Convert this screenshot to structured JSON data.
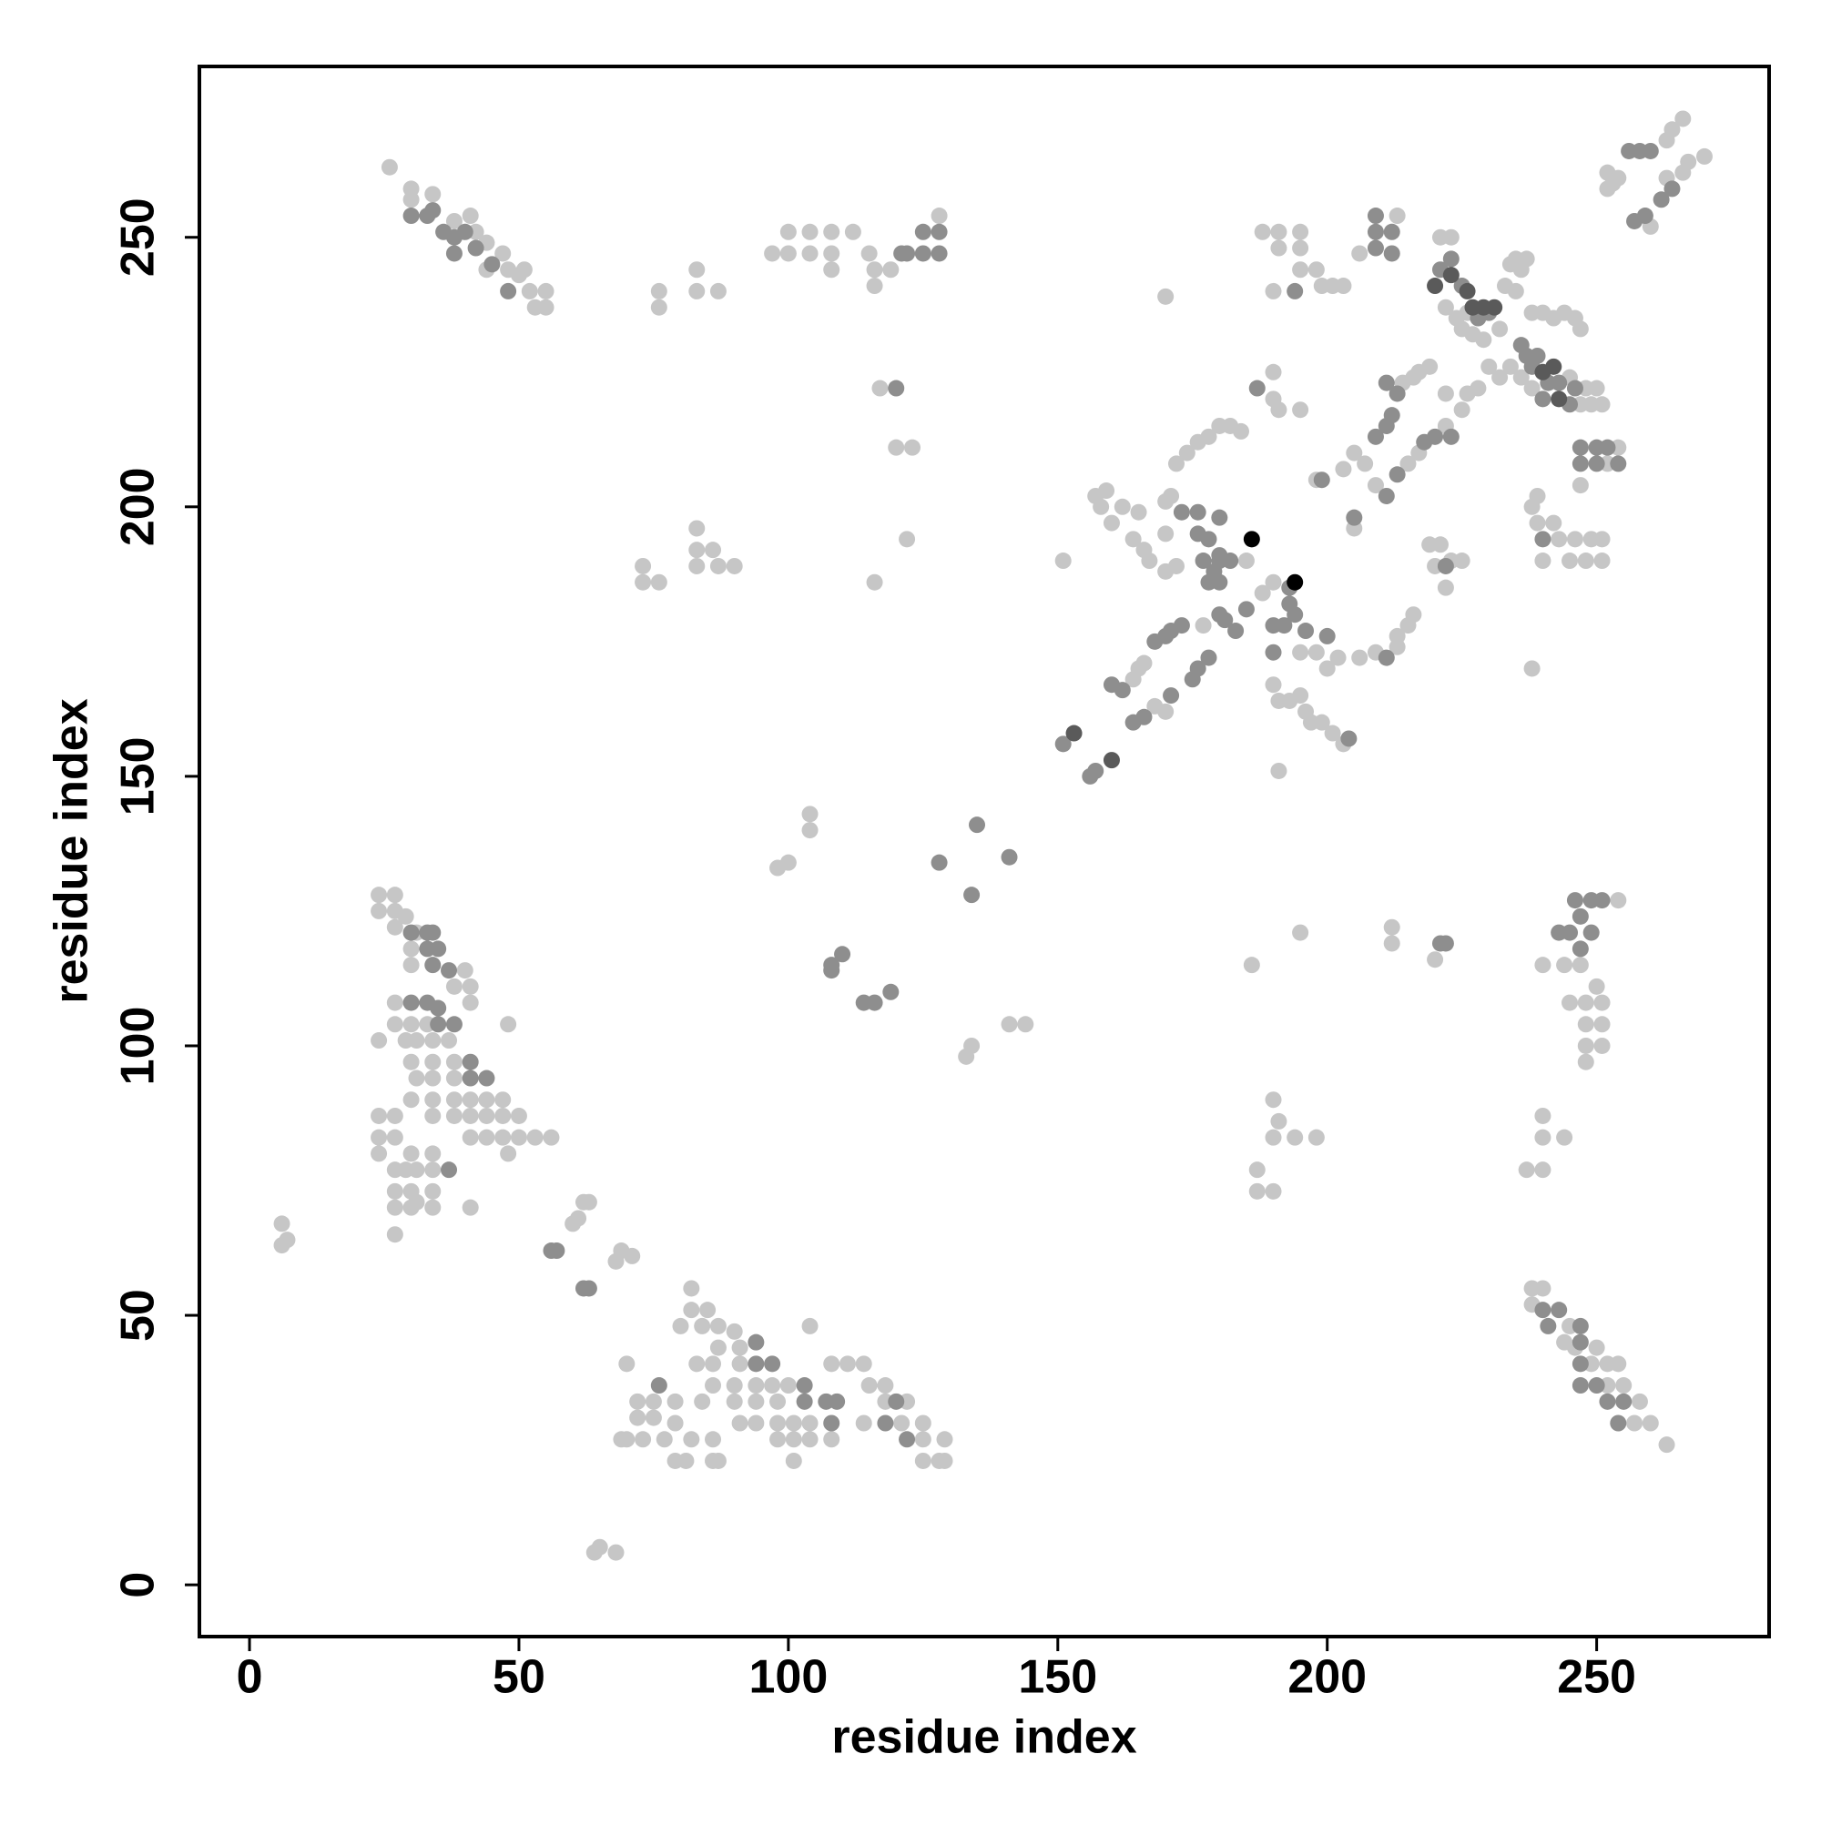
{
  "chart_data": {
    "type": "scatter",
    "x_label": "residue index",
    "y_label": "residue index",
    "xlim": [
      -9.3,
      282
    ],
    "ylim": [
      -9.6,
      281.7
    ],
    "xticks": [
      0,
      50,
      100,
      150,
      200,
      250
    ],
    "yticks": [
      0,
      50,
      100,
      150,
      200,
      250
    ],
    "series": [
      {
        "color": "#c6c6c6",
        "x": [
          26,
          30,
          30,
          34,
          38,
          42,
          44,
          47,
          48,
          50,
          51,
          52,
          53,
          55,
          55,
          41,
          44,
          76,
          76,
          83,
          83,
          87,
          97,
          100,
          100,
          104,
          104,
          108,
          108,
          108,
          112,
          115,
          116,
          116,
          119,
          128,
          117,
          120,
          123,
          122,
          116,
          73,
          73,
          76,
          83,
          83,
          83,
          86,
          87,
          90,
          104,
          104,
          98,
          100,
          133,
          134,
          141,
          144,
          24,
          24,
          27,
          27,
          29,
          27,
          31,
          30,
          30,
          40,
          38,
          41,
          41,
          27,
          27,
          30,
          33,
          24,
          29,
          31,
          34,
          37,
          38,
          34,
          30,
          31,
          34,
          38,
          30,
          34,
          38,
          41,
          44,
          47,
          34,
          38,
          41,
          44,
          47,
          50,
          24,
          27,
          24,
          27,
          41,
          44,
          47,
          50,
          53,
          56,
          24,
          30,
          34,
          48,
          48,
          27,
          29,
          31,
          34,
          27,
          30,
          31,
          34,
          27,
          30,
          34,
          41,
          27,
          6,
          6,
          7,
          60,
          61,
          62,
          63,
          69,
          68,
          71,
          64,
          65,
          68,
          82,
          82,
          85,
          80,
          84,
          87,
          87,
          90,
          91,
          83,
          86,
          91,
          70,
          86,
          90,
          94,
          97,
          100,
          108,
          111,
          114,
          115,
          118,
          72,
          75,
          79,
          84,
          90,
          94,
          98,
          118,
          122,
          72,
          75,
          79,
          91,
          94,
          98,
          101,
          104,
          114,
          121,
          125,
          69,
          70,
          73,
          77,
          82,
          86,
          98,
          101,
          104,
          108,
          125,
          129,
          79,
          81,
          86,
          87,
          101,
          125,
          128,
          129,
          104,
          238,
          238,
          240,
          245,
          244,
          246,
          250,
          249,
          252,
          254,
          252,
          255,
          258,
          257,
          260,
          263,
          254,
          244,
          247,
          240,
          250,
          245,
          248,
          251,
          248,
          251,
          248,
          251,
          248,
          240,
          240,
          244,
          237,
          240,
          238,
          220,
          212,
          212,
          190,
          191,
          190,
          194,
          198,
          187,
          187,
          190,
          186,
          195,
          164,
          165,
          166,
          168,
          170,
          177,
          188,
          190,
          170,
          166,
          164,
          160,
          158,
          157,
          159,
          162,
          165,
          170,
          171,
          172,
          174,
          176,
          178,
          180,
          182,
          184,
          185,
          167,
          170,
          172,
          151,
          170,
          195,
          198,
          200,
          202,
          190,
          191,
          195,
          196,
          197,
          199,
          201,
          203,
          191,
          193,
          190,
          191,
          195,
          190,
          188,
          191,
          191,
          195,
          195,
          195,
          190,
          198,
          199,
          201,
          203,
          206,
          213,
          198,
          203,
          205,
          207,
          214,
          216,
          217,
          219,
          205,
          209,
          215,
          217,
          222,
          225,
          226,
          228,
          213,
          215,
          216,
          209,
          206,
          213,
          219,
          221,
          220,
          222,
          223,
          225,
          222,
          221,
          223,
          226,
          224,
          222,
          225,
          227,
          229,
          232,
          233,
          234,
          235,
          236,
          237,
          235,
          245,
          248,
          250,
          251,
          247,
          249,
          238,
          236,
          234,
          232,
          230,
          238,
          240,
          242,
          244,
          246,
          247,
          254,
          252,
          247,
          238,
          239,
          242,
          243,
          246,
          249,
          251,
          240,
          245,
          248,
          251,
          239,
          252,
          253,
          254,
          263,
          264,
          266,
          263,
          266,
          267,
          270,
          252,
          260
        ],
        "values": [
          263,
          259,
          257,
          258,
          253,
          251,
          249,
          247,
          244,
          243,
          244,
          240,
          237,
          240,
          237,
          254,
          244,
          240,
          237,
          244,
          240,
          240,
          247,
          251,
          247,
          251,
          247,
          251,
          247,
          244,
          251,
          247,
          244,
          241,
          244,
          254,
          222,
          211,
          211,
          194,
          186,
          189,
          186,
          186,
          196,
          192,
          189,
          192,
          189,
          189,
          143,
          140,
          133,
          134,
          98,
          100,
          104,
          104,
          128,
          125,
          128,
          125,
          124,
          122,
          121,
          118,
          115,
          114,
          111,
          111,
          108,
          108,
          104,
          104,
          104,
          101,
          101,
          101,
          101,
          101,
          97,
          97,
          97,
          94,
          94,
          94,
          90,
          90,
          90,
          90,
          90,
          90,
          87,
          87,
          87,
          87,
          87,
          87,
          87,
          87,
          83,
          83,
          83,
          83,
          83,
          83,
          83,
          83,
          80,
          80,
          80,
          80,
          104,
          77,
          77,
          77,
          77,
          73,
          73,
          71,
          73,
          70,
          70,
          70,
          70,
          65,
          67,
          63,
          64,
          67,
          68,
          71,
          71,
          62,
          60,
          61,
          6,
          7,
          6,
          55,
          51,
          51,
          48,
          48,
          48,
          44,
          47,
          44,
          41,
          41,
          41,
          41,
          37,
          37,
          37,
          37,
          37,
          41,
          41,
          41,
          37,
          37,
          34,
          34,
          34,
          34,
          34,
          34,
          34,
          34,
          34,
          31,
          31,
          30,
          30,
          30,
          30,
          30,
          30,
          30,
          30,
          30,
          27,
          27,
          27,
          27,
          27,
          27,
          27,
          27,
          27,
          27,
          27,
          27,
          23,
          23,
          23,
          23,
          23,
          23,
          23,
          23,
          48,
          55,
          52,
          55,
          48,
          45,
          44,
          44,
          41,
          41,
          41,
          37,
          37,
          34,
          30,
          30,
          26,
          127,
          115,
          115,
          115,
          111,
          108,
          108,
          108,
          104,
          104,
          100,
          100,
          97,
          87,
          83,
          83,
          77,
          77,
          170,
          116,
          122,
          119,
          90,
          86,
          83,
          83,
          83,
          77,
          73,
          73,
          115,
          121,
          168,
          170,
          171,
          163,
          162,
          178,
          184,
          186,
          195,
          192,
          194,
          197,
          200,
          202,
          203,
          200,
          199,
          201,
          202,
          208,
          210,
          212,
          213,
          215,
          215,
          214,
          190,
          190,
          188,
          189,
          190,
          239,
          173,
          173,
          170,
          172,
          167,
          164,
          165,
          162,
          160,
          160,
          158,
          156,
          151,
          164,
          220,
          218,
          218,
          225,
          251,
          251,
          248,
          251,
          248,
          244,
          240,
          244,
          241,
          241,
          241,
          247,
          254,
          205,
          207,
          210,
          208,
          223,
          224,
          225,
          226,
          196,
          204,
          208,
          210,
          215,
          218,
          221,
          222,
          174,
          178,
          180,
          173,
          172,
          176,
          193,
          193,
          189,
          185,
          190,
          190,
          221,
          250,
          250,
          236,
          235,
          237,
          233,
          232,
          231,
          233,
          241,
          245,
          246,
          244,
          246,
          240,
          224,
          222,
          222,
          219,
          219,
          219,
          222,
          224,
          226,
          224,
          226,
          236,
          236,
          235,
          236,
          235,
          233,
          211,
          208,
          204,
          200,
          197,
          197,
          194,
          194,
          194,
          194,
          190,
          190,
          190,
          190,
          202,
          259,
          260,
          261,
          268,
          270,
          272,
          261,
          262,
          264,
          265,
          262,
          252
        ]
      },
      {
        "color": "#8e8e8e",
        "x": [
          30,
          33,
          34,
          36,
          38,
          40,
          38,
          42,
          45,
          48,
          121,
          122,
          125,
          125,
          128,
          128,
          120,
          128,
          135,
          141,
          134,
          108,
          108,
          110,
          114,
          116,
          119,
          30,
          33,
          34,
          33,
          35,
          34,
          37,
          30,
          33,
          35,
          35,
          38,
          41,
          41,
          44,
          37,
          56,
          57,
          62,
          63,
          94,
          94,
          97,
          76,
          103,
          103,
          107,
          109,
          120,
          108,
          118,
          122,
          240,
          243,
          241,
          247,
          247,
          247,
          250,
          247,
          252,
          255,
          254,
          246,
          247,
          249,
          251,
          243,
          245,
          249,
          247,
          221,
          222,
          151,
          156,
          157,
          160,
          162,
          168,
          170,
          171,
          173,
          164,
          166,
          171,
          175,
          176,
          178,
          180,
          181,
          183,
          185,
          178,
          179,
          180,
          178,
          176,
          180,
          173,
          176,
          180,
          182,
          177,
          180,
          190,
          192,
          193,
          193,
          194,
          196,
          190,
          200,
          204,
          187,
          194,
          209,
          209,
          209,
          212,
          212,
          199,
          209,
          211,
          212,
          213,
          211,
          205,
          211,
          213,
          218,
          220,
          223,
          211,
          222,
          223,
          221,
          225,
          228,
          230,
          236,
          237,
          238,
          239,
          241,
          243,
          246,
          245,
          240,
          247,
          250,
          252,
          247,
          250,
          254,
          240,
          256,
          258,
          260,
          257,
          259,
          262,
          264
        ],
        "values": [
          254,
          254,
          255,
          251,
          250,
          251,
          247,
          248,
          245,
          240,
          247,
          247,
          251,
          247,
          251,
          247,
          222,
          134,
          141,
          135,
          128,
          114,
          115,
          117,
          108,
          108,
          110,
          121,
          121,
          121,
          118,
          118,
          115,
          114,
          108,
          108,
          107,
          104,
          104,
          97,
          94,
          94,
          77,
          62,
          62,
          55,
          55,
          45,
          41,
          41,
          37,
          37,
          34,
          34,
          34,
          34,
          30,
          30,
          27,
          51,
          51,
          48,
          48,
          45,
          41,
          37,
          37,
          34,
          34,
          30,
          127,
          124,
          127,
          127,
          121,
          121,
          121,
          118,
          119,
          119,
          156,
          150,
          151,
          167,
          166,
          175,
          176,
          177,
          178,
          160,
          161,
          165,
          168,
          170,
          172,
          180,
          179,
          177,
          181,
          186,
          188,
          191,
          194,
          195,
          198,
          199,
          199,
          190,
          190,
          190,
          186,
          178,
          178,
          182,
          185,
          180,
          177,
          173,
          176,
          157,
          222,
          240,
          254,
          251,
          248,
          251,
          247,
          205,
          213,
          215,
          217,
          221,
          223,
          198,
          202,
          206,
          212,
          213,
          213,
          172,
          189,
          246,
          244,
          241,
          235,
          236,
          230,
          228,
          226,
          228,
          223,
          223,
          222,
          219,
          220,
          211,
          211,
          211,
          208,
          208,
          208,
          194,
          266,
          266,
          266,
          253,
          254,
          257,
          259
        ]
      },
      {
        "color": "#5a5a5a",
        "x": [
          153,
          160,
          220,
          223,
          226,
          227,
          229,
          231,
          240,
          242,
          243
        ],
        "values": [
          158,
          153,
          241,
          243,
          240,
          237,
          237,
          237,
          225,
          226,
          220
        ]
      },
      {
        "color": "#000000",
        "x": [
          186,
          194
        ],
        "values": [
          194,
          186
        ]
      }
    ]
  }
}
